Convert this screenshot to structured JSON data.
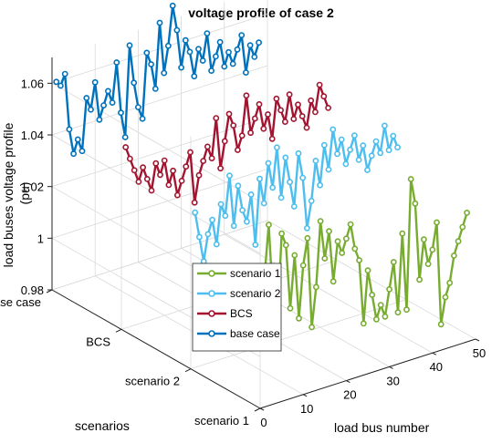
{
  "chart_data": {
    "type": "line",
    "title": "voltage profile of case 2",
    "xlabel": "load bus number",
    "ylabel": "scenarios",
    "zlabel": "load buses voltage profile (pu)",
    "xlim": [
      0,
      50
    ],
    "zlim": [
      0.98,
      1.07
    ],
    "x_ticks": [
      "0",
      "10",
      "20",
      "30",
      "40",
      "50"
    ],
    "scenario_ticks": [
      "scenario 1",
      "scenario 2",
      "BCS",
      "base case"
    ],
    "z_ticks": [
      "0.98",
      "1",
      "1.02",
      "1.04",
      "1.06"
    ],
    "grid": true,
    "legend_position": "center",
    "series": [
      {
        "name": "scenario 1",
        "color": "#77AC30",
        "x": [
          1,
          2,
          3,
          4,
          5,
          6,
          7,
          8,
          9,
          10,
          11,
          12,
          13,
          14,
          15,
          16,
          17,
          18,
          19,
          20,
          21,
          22,
          23,
          24,
          25,
          26,
          27,
          28,
          29,
          30,
          31,
          32,
          33,
          34,
          35,
          36,
          37,
          38,
          39,
          40,
          41,
          42,
          43,
          44,
          45,
          46,
          47,
          48
        ],
        "z": [
          1.03,
          1.05,
          1.02,
          1.01,
          1.045,
          1.04,
          1.015,
          1.035,
          1.01,
          1.03,
          1.04,
          1.005,
          1.02,
          1.045,
          1.03,
          1.04,
          1.02,
          1.035,
          1.03,
          1.035,
          1.04,
          1.03,
          1.025,
          1.0,
          1.02,
          1.01,
          1.0,
          1.005,
          1.0,
          1.01,
          1.02,
          1.0,
          1.03,
          1.0,
          1.05,
          1.04,
          1.01,
          1.025,
          1.015,
          1.02,
          1.03,
          0.99,
          1.0,
          1.005,
          1.015,
          1.02,
          1.025,
          1.03
        ]
      },
      {
        "name": "scenario 2",
        "color": "#4DBEEE",
        "x": [
          1,
          2,
          3,
          4,
          5,
          6,
          7,
          8,
          9,
          10,
          11,
          12,
          13,
          14,
          15,
          16,
          17,
          18,
          19,
          20,
          21,
          22,
          23,
          24,
          25,
          26,
          27,
          28,
          29,
          30,
          31,
          32,
          33,
          34,
          35,
          36,
          37,
          38,
          39,
          40,
          41,
          42,
          43,
          44,
          45,
          46,
          47,
          48
        ],
        "z": [
          1.04,
          1.03,
          1.02,
          1.03,
          1.035,
          1.025,
          1.04,
          1.035,
          1.05,
          1.03,
          1.045,
          1.035,
          1.03,
          1.04,
          1.02,
          1.045,
          1.035,
          1.05,
          1.04,
          1.055,
          1.035,
          1.05,
          1.04,
          1.03,
          1.05,
          1.04,
          1.02,
          1.03,
          1.045,
          1.035,
          1.05,
          1.04,
          1.055,
          1.045,
          1.05,
          1.04,
          1.045,
          1.05,
          1.04,
          1.045,
          1.035,
          1.04,
          1.045,
          1.04,
          1.05,
          1.04,
          1.045,
          1.04
        ]
      },
      {
        "name": "BCS",
        "color": "#A2142F",
        "x": [
          1,
          2,
          3,
          4,
          5,
          6,
          7,
          8,
          9,
          10,
          11,
          12,
          13,
          14,
          15,
          16,
          17,
          18,
          19,
          20,
          21,
          22,
          23,
          24,
          25,
          26,
          27,
          28,
          29,
          30,
          31,
          32,
          33,
          34,
          35,
          36,
          37,
          38,
          39,
          40,
          41,
          42,
          43,
          44,
          45,
          46,
          47,
          48
        ],
        "z": [
          1.05,
          1.045,
          1.04,
          1.035,
          1.04,
          1.035,
          1.03,
          1.04,
          1.035,
          1.04,
          1.03,
          1.035,
          1.025,
          1.03,
          1.035,
          1.04,
          1.02,
          1.03,
          1.035,
          1.04,
          1.035,
          1.05,
          1.03,
          1.04,
          1.05,
          1.045,
          1.035,
          1.04,
          1.055,
          1.04,
          1.045,
          1.05,
          1.04,
          1.045,
          1.035,
          1.05,
          1.045,
          1.04,
          1.05,
          1.04,
          1.045,
          1.04,
          1.035,
          1.045,
          1.04,
          1.05,
          1.045,
          1.04
        ]
      },
      {
        "name": "base case",
        "color": "#0072BD",
        "x": [
          1,
          2,
          3,
          4,
          5,
          6,
          7,
          8,
          9,
          10,
          11,
          12,
          13,
          14,
          15,
          16,
          17,
          18,
          19,
          20,
          21,
          22,
          23,
          24,
          25,
          26,
          27,
          28,
          29,
          30,
          31,
          32,
          33,
          34,
          35,
          36,
          37,
          38,
          39,
          40,
          41,
          42,
          43,
          44,
          45,
          46,
          47,
          48
        ],
        "z": [
          1.06,
          1.058,
          1.062,
          1.04,
          1.03,
          1.035,
          1.03,
          1.05,
          1.045,
          1.055,
          1.04,
          1.045,
          1.05,
          1.045,
          1.06,
          1.04,
          1.03,
          1.065,
          1.05,
          1.04,
          1.035,
          1.06,
          1.055,
          1.045,
          1.07,
          1.05,
          1.06,
          1.075,
          1.065,
          1.05,
          1.06,
          1.055,
          1.045,
          1.055,
          1.05,
          1.06,
          1.045,
          1.05,
          1.055,
          1.045,
          1.05,
          1.045,
          1.05,
          1.055,
          1.04,
          1.05,
          1.045,
          1.05
        ]
      }
    ]
  }
}
